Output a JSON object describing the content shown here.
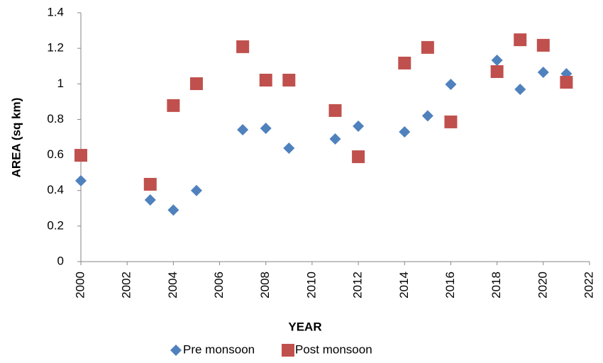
{
  "chart_data": {
    "type": "scatter",
    "x_label": "YEAR",
    "y_label": "AREA (sq km)",
    "xlim": [
      2000,
      2022
    ],
    "xticks": [
      2000,
      2002,
      2004,
      2006,
      2008,
      2010,
      2012,
      2014,
      2016,
      2018,
      2020,
      2022
    ],
    "ylim": [
      0,
      1.4
    ],
    "yticks": [
      0,
      0.2,
      0.4,
      0.6,
      0.8,
      1,
      1.2,
      1.4
    ],
    "grid": false,
    "legend": "bottom",
    "series": [
      {
        "name": "Pre monsoon",
        "color": "#4f81bd",
        "marker": "diamond",
        "x": [
          2000,
          2003,
          2004,
          2005,
          2007,
          2008,
          2009,
          2011,
          2012,
          2014,
          2015,
          2016,
          2018,
          2019,
          2020,
          2021
        ],
        "values": [
          0.455,
          0.347,
          0.29,
          0.4,
          0.742,
          0.75,
          0.638,
          0.69,
          0.762,
          0.73,
          0.82,
          0.997,
          1.133,
          0.969,
          1.065,
          1.057
        ]
      },
      {
        "name": "Post monsoon",
        "color": "#c0504d",
        "marker": "square",
        "x": [
          2000,
          2003,
          2004,
          2005,
          2007,
          2008,
          2009,
          2011,
          2012,
          2014,
          2015,
          2016,
          2018,
          2019,
          2020,
          2021
        ],
        "values": [
          0.598,
          0.435,
          0.878,
          1.001,
          1.209,
          1.021,
          1.021,
          0.85,
          0.59,
          1.117,
          1.205,
          0.786,
          1.069,
          1.248,
          1.217,
          1.009
        ]
      }
    ]
  }
}
